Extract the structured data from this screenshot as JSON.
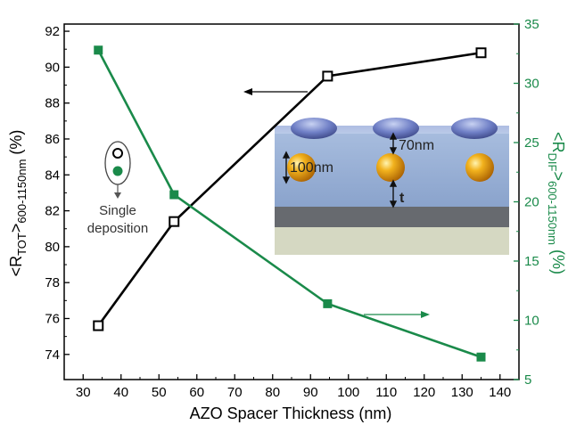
{
  "chart_data": {
    "type": "line",
    "title": "",
    "xlabel": "AZO Spacer Thickness (nm)",
    "ylabel_left": {
      "main": "<R",
      "sub": "TOT",
      "sup": ">",
      "sub2": "600-1150nm",
      "unit": " (%)"
    },
    "ylabel_right": {
      "main": "<R",
      "sub": "DIF",
      "sup": ">",
      "sub2": "600-1150nm",
      "unit": " (%)"
    },
    "xlim": [
      25,
      145
    ],
    "ylim_left": [
      72.6,
      92.4
    ],
    "ylim_right": [
      5,
      35
    ],
    "x_ticks": [
      30,
      40,
      50,
      60,
      70,
      80,
      90,
      100,
      110,
      120,
      130,
      140
    ],
    "y_left_ticks": [
      74,
      76,
      78,
      80,
      82,
      84,
      86,
      88,
      90,
      92
    ],
    "y_right_ticks": [
      5,
      10,
      15,
      20,
      25,
      30,
      35
    ],
    "series": [
      {
        "axis": "left",
        "color": "#000000",
        "marker": "open-square",
        "x": [
          34,
          54,
          94.5,
          135
        ],
        "y": [
          75.6,
          81.4,
          89.5,
          90.8
        ]
      },
      {
        "axis": "right",
        "color": "#1a8a4a",
        "marker": "filled-square",
        "x": [
          34,
          54,
          94.5,
          135
        ],
        "y": [
          32.8,
          20.6,
          11.4,
          6.9
        ]
      }
    ],
    "legend": {
      "label_line1": "Single",
      "label_line2": "deposition"
    },
    "inset": {
      "label_70": "70nm",
      "label_100": "100nm",
      "label_t": "t"
    }
  },
  "colors": {
    "green": "#1a8a4a",
    "black": "#000000"
  }
}
